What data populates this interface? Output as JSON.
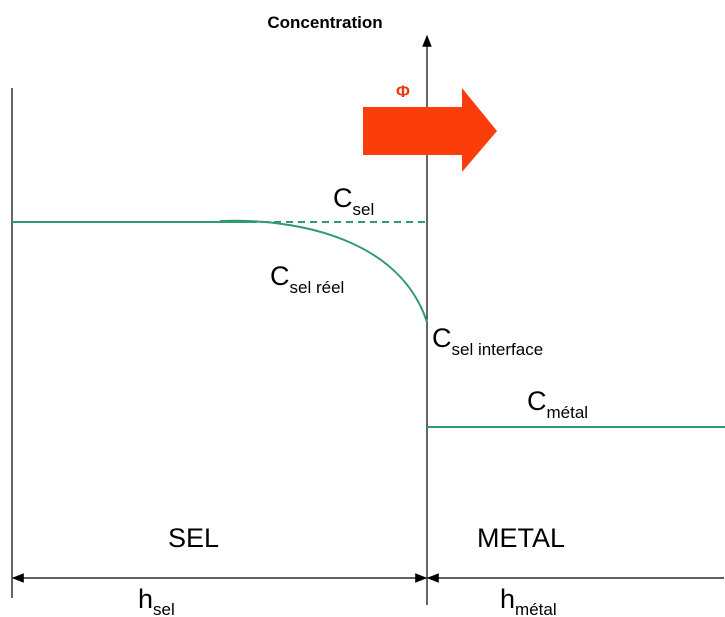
{
  "axis_label": "Concentration",
  "flux": "Φ",
  "labels": [
    {
      "base": "C",
      "sub": "sel"
    },
    {
      "base": "C",
      "sub": "sel réel"
    },
    {
      "base": "C",
      "sub": "sel interface"
    },
    {
      "base": "C",
      "sub": "métal"
    }
  ],
  "regions": [
    "SEL",
    "METAL"
  ],
  "widths": [
    {
      "base": "h",
      "sub": "sel"
    },
    {
      "base": "h",
      "sub": "métal"
    }
  ]
}
